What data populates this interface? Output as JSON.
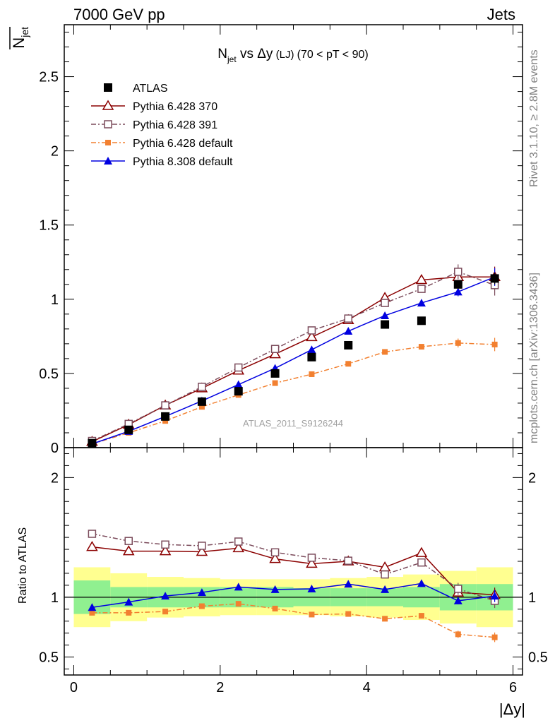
{
  "header": {
    "left": "7000 GeV pp",
    "right": "Jets",
    "side_right_top": "Rivet 3.1.10, ≥ 2.8M events",
    "side_right_bottom": "mcplots.cern.ch [arXiv:1306.3436]"
  },
  "chart_data": [
    {
      "panel": "main",
      "type": "scatter",
      "title_main": "N",
      "title_sub": "jet",
      "title_rest": " vs Δy",
      "title_small": " (LJ) ",
      "title_tail": "(70 < pT <  90)",
      "ylabel_main": "N",
      "ylabel_sub": "jet",
      "xlabel": "|Δy|",
      "watermark": "ATLAS_2011_S9126244",
      "xlim": [
        -0.13,
        6.13
      ],
      "ylim": [
        0,
        2.85
      ],
      "yticks": [
        0,
        0.5,
        1,
        1.5,
        2,
        2.5
      ],
      "ytick_labels": [
        "0",
        "0.5",
        "1",
        "1.5",
        "2",
        "2.5"
      ],
      "x": [
        0.25,
        0.75,
        1.25,
        1.75,
        2.25,
        2.75,
        3.25,
        3.75,
        4.25,
        4.75,
        5.25,
        5.75
      ],
      "series": [
        {
          "name": "ATLAS",
          "color": "#000000",
          "marker": "square-filled",
          "dash": "none",
          "values": [
            0.03,
            0.12,
            0.21,
            0.31,
            0.38,
            0.5,
            0.61,
            0.69,
            0.83,
            0.855,
            1.1,
            1.14
          ],
          "errors": [
            0.005,
            0.01,
            0.01,
            0.01,
            0.01,
            0.01,
            0.015,
            0.015,
            0.015,
            0.02,
            0.03,
            0.04
          ]
        },
        {
          "name": "Pythia 6.428 370",
          "color": "#8b0000",
          "marker": "triangle-open",
          "dash": "solid",
          "values": [
            0.04,
            0.155,
            0.285,
            0.4,
            0.52,
            0.63,
            0.745,
            0.86,
            1.01,
            1.13,
            1.15,
            1.15
          ],
          "errors": [
            0.005,
            0.005,
            0.006,
            0.007,
            0.008,
            0.01,
            0.012,
            0.014,
            0.016,
            0.02,
            0.04,
            0.07
          ]
        },
        {
          "name": "Pythia 6.428 391",
          "color": "#7b4b5b",
          "marker": "square-open",
          "dash": "dashdot",
          "values": [
            0.045,
            0.16,
            0.285,
            0.41,
            0.54,
            0.665,
            0.79,
            0.87,
            0.975,
            1.07,
            1.185,
            1.095
          ],
          "errors": [
            0.005,
            0.005,
            0.006,
            0.007,
            0.008,
            0.01,
            0.012,
            0.014,
            0.016,
            0.02,
            0.05,
            0.07
          ]
        },
        {
          "name": "Pythia 6.428 default",
          "color": "#f28030",
          "marker": "square-small-filled",
          "dash": "dashdot",
          "values": [
            0.025,
            0.1,
            0.18,
            0.275,
            0.355,
            0.435,
            0.495,
            0.565,
            0.645,
            0.68,
            0.705,
            0.695
          ],
          "errors": [
            0.003,
            0.004,
            0.005,
            0.006,
            0.007,
            0.008,
            0.009,
            0.01,
            0.012,
            0.015,
            0.03,
            0.045
          ]
        },
        {
          "name": "Pythia 8.308 default",
          "color": "#0000e0",
          "marker": "triangle-filled",
          "dash": "solid",
          "values": [
            0.025,
            0.11,
            0.21,
            0.315,
            0.425,
            0.535,
            0.66,
            0.785,
            0.89,
            0.975,
            1.05,
            1.15
          ],
          "errors": [
            0.003,
            0.004,
            0.005,
            0.006,
            0.007,
            0.008,
            0.01,
            0.012,
            0.014,
            0.018,
            0.03,
            0.06
          ]
        }
      ]
    },
    {
      "panel": "ratio",
      "type": "scatter",
      "ylabel": "Ratio to ATLAS",
      "xlabel": "|Δy|",
      "xlim": [
        -0.13,
        6.13
      ],
      "ylim": [
        0.35,
        2.25
      ],
      "yticks": [
        0.5,
        1,
        2
      ],
      "ytick_labels": [
        "0.5",
        "1",
        "2"
      ],
      "xticks": [
        0,
        2,
        4,
        6
      ],
      "xtick_labels": [
        "0",
        "2",
        "4",
        "6"
      ],
      "x": [
        0.25,
        0.75,
        1.25,
        1.75,
        2.25,
        2.75,
        3.25,
        3.75,
        4.25,
        4.75,
        5.25,
        5.75
      ],
      "bin_edges": [
        0,
        0.5,
        1,
        1.5,
        2,
        2.5,
        3,
        3.5,
        4,
        4.5,
        5,
        5.5,
        6
      ],
      "band_stat": [
        0.14,
        0.085,
        0.085,
        0.085,
        0.085,
        0.085,
        0.075,
        0.075,
        0.075,
        0.085,
        0.11,
        0.11
      ],
      "band_total": [
        0.25,
        0.2,
        0.17,
        0.16,
        0.15,
        0.15,
        0.15,
        0.16,
        0.17,
        0.19,
        0.22,
        0.25
      ],
      "band_colors": {
        "stat": "#90f090",
        "total": "#ffff90"
      },
      "series": [
        {
          "name": "Pythia 6.428 370",
          "values": [
            1.42,
            1.385,
            1.385,
            1.38,
            1.41,
            1.32,
            1.28,
            1.3,
            1.25,
            1.37,
            1.04,
            1.02
          ],
          "errors": [
            0.02,
            0.01,
            0.01,
            0.01,
            0.01,
            0.01,
            0.01,
            0.01,
            0.01,
            0.015,
            0.04,
            0.06
          ]
        },
        {
          "name": "Pythia 6.428 391",
          "values": [
            1.53,
            1.47,
            1.44,
            1.43,
            1.465,
            1.375,
            1.33,
            1.305,
            1.19,
            1.29,
            1.07,
            0.97
          ],
          "errors": [
            0.02,
            0.01,
            0.01,
            0.01,
            0.01,
            0.01,
            0.01,
            0.01,
            0.01,
            0.015,
            0.05,
            0.06
          ]
        },
        {
          "name": "Pythia 6.428 default",
          "values": [
            0.87,
            0.87,
            0.88,
            0.925,
            0.945,
            0.905,
            0.855,
            0.86,
            0.82,
            0.845,
            0.69,
            0.665
          ],
          "errors": [
            0.02,
            0.01,
            0.01,
            0.01,
            0.01,
            0.01,
            0.01,
            0.01,
            0.012,
            0.02,
            0.03,
            0.04
          ]
        },
        {
          "name": "Pythia 8.308 default",
          "values": [
            0.915,
            0.96,
            1.01,
            1.04,
            1.085,
            1.065,
            1.07,
            1.11,
            1.065,
            1.115,
            0.97,
            1.01
          ],
          "errors": [
            0.02,
            0.01,
            0.01,
            0.01,
            0.01,
            0.01,
            0.01,
            0.01,
            0.012,
            0.015,
            0.03,
            0.05
          ]
        }
      ]
    }
  ]
}
